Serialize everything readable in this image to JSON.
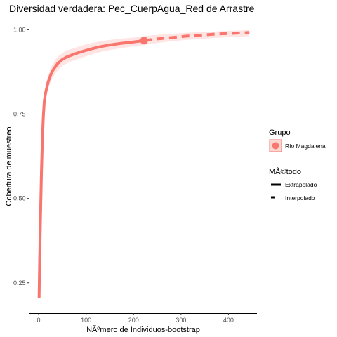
{
  "chart_data": {
    "type": "line",
    "title": "Diversidad verdadera: Pec_CuerpAgua_Red de Arrastre",
    "xlabel": "NÃºmero de Individuos-bootstrap",
    "ylabel": "Cobertura de muestreo",
    "xlim": [
      -20,
      460
    ],
    "ylim": [
      0.16,
      1.03
    ],
    "x_ticks": [
      0,
      100,
      200,
      300,
      400
    ],
    "x_tick_labels": [
      "0",
      "100",
      "200",
      "300",
      "400"
    ],
    "y_ticks": [
      0.25,
      0.5,
      0.75,
      1.0
    ],
    "y_tick_labels": [
      "0.25",
      "0.50",
      "0.75",
      "1.00"
    ],
    "grid": false,
    "legend": {
      "position": "right",
      "group_title": "Grupo",
      "group_items": [
        {
          "label": "Río Magdalena",
          "color": "#F8766D"
        }
      ],
      "method_title": "MÃ©todo",
      "method_items": [
        {
          "label": "Extrapolado",
          "style": "solid"
        },
        {
          "label": "Interpolado",
          "style": "dashed"
        }
      ]
    },
    "series": [
      {
        "group": "Río Magdalena",
        "color": "#F8766D",
        "observed_point": {
          "x": 222,
          "y": 0.968
        },
        "interpolated": {
          "x": [
            1,
            2,
            4,
            6,
            8,
            10,
            12,
            15,
            20,
            25,
            30,
            40,
            50,
            60,
            75,
            90,
            110,
            130,
            150,
            175,
            200,
            222
          ],
          "y": [
            0.205,
            0.3,
            0.45,
            0.58,
            0.68,
            0.745,
            0.79,
            0.815,
            0.845,
            0.865,
            0.88,
            0.9,
            0.912,
            0.92,
            0.928,
            0.935,
            0.943,
            0.95,
            0.955,
            0.96,
            0.964,
            0.968
          ]
        },
        "extrapolated": {
          "x": [
            222,
            250,
            280,
            310,
            340,
            370,
            400,
            430,
            444
          ],
          "y": [
            0.968,
            0.973,
            0.977,
            0.981,
            0.984,
            0.987,
            0.989,
            0.991,
            0.992
          ]
        },
        "band_lower": [
          0.17,
          0.26,
          0.41,
          0.55,
          0.65,
          0.72,
          0.765,
          0.795,
          0.825,
          0.845,
          0.86,
          0.88,
          0.893,
          0.901,
          0.91,
          0.917,
          0.926,
          0.934,
          0.94,
          0.946,
          0.951,
          0.955,
          0.961,
          0.966,
          0.97,
          0.973,
          0.976,
          0.978,
          0.98,
          0.981
        ],
        "band_upper": [
          0.24,
          0.34,
          0.49,
          0.61,
          0.71,
          0.77,
          0.815,
          0.835,
          0.865,
          0.885,
          0.9,
          0.92,
          0.931,
          0.939,
          0.946,
          0.953,
          0.96,
          0.966,
          0.97,
          0.974,
          0.977,
          0.981,
          0.985,
          0.988,
          0.991,
          0.993,
          0.995,
          0.997,
          0.998,
          0.999
        ]
      }
    ]
  }
}
